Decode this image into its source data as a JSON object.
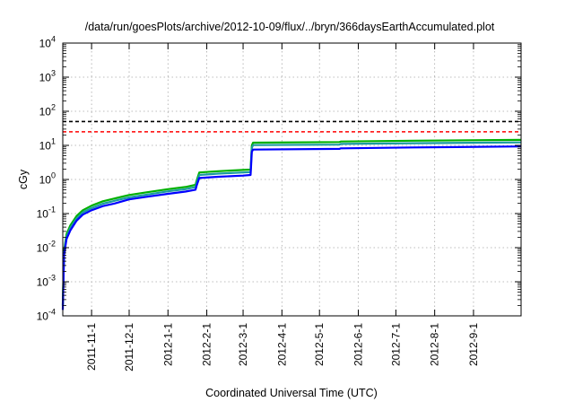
{
  "chart_data": {
    "type": "line",
    "title": "/data/run/goesPlots/archive/2012-10-09/flux/../bryn/366daysEarthAccumulated.plot",
    "xlabel": "Coordinated Universal Time (UTC)",
    "ylabel": "cGy",
    "yscale": "log",
    "xlim": [
      "2011-10-09",
      "2012-10-09"
    ],
    "ylim": [
      0.0001,
      10000
    ],
    "grid": true,
    "x_ticks": [
      {
        "date": "2011-11-01",
        "label": "2011-11-1"
      },
      {
        "date": "2011-12-01",
        "label": "2011-12-1"
      },
      {
        "date": "2012-01-01",
        "label": "2012-1-1"
      },
      {
        "date": "2012-02-01",
        "label": "2012-2-1"
      },
      {
        "date": "2012-03-01",
        "label": "2012-3-1"
      },
      {
        "date": "2012-04-01",
        "label": "2012-4-1"
      },
      {
        "date": "2012-05-01",
        "label": "2012-5-1"
      },
      {
        "date": "2012-06-01",
        "label": "2012-6-1"
      },
      {
        "date": "2012-07-01",
        "label": "2012-7-1"
      },
      {
        "date": "2012-08-01",
        "label": "2012-8-1"
      },
      {
        "date": "2012-09-01",
        "label": "2012-9-1"
      }
    ],
    "y_ticks": [
      {
        "value": 0.0001,
        "base": "10",
        "exp": "-4"
      },
      {
        "value": 0.001,
        "base": "10",
        "exp": "-3"
      },
      {
        "value": 0.01,
        "base": "10",
        "exp": "-2"
      },
      {
        "value": 0.1,
        "base": "10",
        "exp": "-1"
      },
      {
        "value": 1,
        "base": "10",
        "exp": "0"
      },
      {
        "value": 10,
        "base": "10",
        "exp": "1"
      },
      {
        "value": 100,
        "base": "10",
        "exp": "2"
      },
      {
        "value": 1000,
        "base": "10",
        "exp": "3"
      },
      {
        "value": 10000,
        "base": "10",
        "exp": "4"
      }
    ],
    "reference_lines": [
      {
        "y": 50,
        "color": "#000000",
        "style": "dashed"
      },
      {
        "y": 25,
        "color": "#ff0000",
        "style": "dashed"
      }
    ],
    "series": [
      {
        "color": "#00b000",
        "points": [
          [
            "2011-10-09",
            0.0002
          ],
          [
            "2011-10-10",
            0.008
          ],
          [
            "2011-10-12",
            0.025
          ],
          [
            "2011-10-15",
            0.045
          ],
          [
            "2011-10-20",
            0.085
          ],
          [
            "2011-10-25",
            0.125
          ],
          [
            "2011-11-01",
            0.17
          ],
          [
            "2011-11-10",
            0.23
          ],
          [
            "2011-11-20",
            0.28
          ],
          [
            "2011-12-01",
            0.35
          ],
          [
            "2011-12-15",
            0.42
          ],
          [
            "2012-01-01",
            0.52
          ],
          [
            "2012-01-15",
            0.6
          ],
          [
            "2012-01-23",
            0.7
          ],
          [
            "2012-01-24",
            0.95
          ],
          [
            "2012-01-26",
            1.6
          ],
          [
            "2012-02-10",
            1.75
          ],
          [
            "2012-03-01",
            1.9
          ],
          [
            "2012-03-07",
            1.95
          ],
          [
            "2012-03-08",
            10
          ],
          [
            "2012-03-09",
            12
          ],
          [
            "2012-05-17",
            12.5
          ],
          [
            "2012-05-18",
            13.0
          ],
          [
            "2012-07-15",
            13.7
          ],
          [
            "2012-10-09",
            14.5
          ]
        ]
      },
      {
        "color": "#1a9aa0",
        "points": [
          [
            "2011-10-09",
            0.0002
          ],
          [
            "2011-10-10",
            0.007
          ],
          [
            "2011-10-12",
            0.021
          ],
          [
            "2011-10-15",
            0.038
          ],
          [
            "2011-10-20",
            0.072
          ],
          [
            "2011-10-25",
            0.108
          ],
          [
            "2011-11-01",
            0.145
          ],
          [
            "2011-11-10",
            0.195
          ],
          [
            "2011-11-20",
            0.24
          ],
          [
            "2011-12-01",
            0.3
          ],
          [
            "2011-12-15",
            0.36
          ],
          [
            "2012-01-01",
            0.45
          ],
          [
            "2012-01-15",
            0.52
          ],
          [
            "2012-01-23",
            0.6
          ],
          [
            "2012-01-24",
            0.82
          ],
          [
            "2012-01-26",
            1.35
          ],
          [
            "2012-02-10",
            1.48
          ],
          [
            "2012-03-01",
            1.6
          ],
          [
            "2012-03-07",
            1.64
          ],
          [
            "2012-03-08",
            8.5
          ],
          [
            "2012-03-09",
            10.2
          ],
          [
            "2012-05-17",
            10.5
          ],
          [
            "2012-05-18",
            11.0
          ],
          [
            "2012-07-15",
            11.6
          ],
          [
            "2012-10-09",
            12.2
          ]
        ]
      },
      {
        "color": "#0000ff",
        "points": [
          [
            "2011-10-09",
            0.00015
          ],
          [
            "2011-10-10",
            0.006
          ],
          [
            "2011-10-12",
            0.018
          ],
          [
            "2011-10-15",
            0.032
          ],
          [
            "2011-10-20",
            0.062
          ],
          [
            "2011-10-25",
            0.093
          ],
          [
            "2011-11-01",
            0.125
          ],
          [
            "2011-11-10",
            0.165
          ],
          [
            "2011-11-20",
            0.2
          ],
          [
            "2011-12-01",
            0.26
          ],
          [
            "2011-12-15",
            0.31
          ],
          [
            "2012-01-01",
            0.38
          ],
          [
            "2012-01-15",
            0.44
          ],
          [
            "2012-01-23",
            0.5
          ],
          [
            "2012-01-24",
            0.68
          ],
          [
            "2012-01-26",
            1.1
          ],
          [
            "2012-02-10",
            1.2
          ],
          [
            "2012-03-01",
            1.3
          ],
          [
            "2012-03-07",
            1.35
          ],
          [
            "2012-03-08",
            6.5
          ],
          [
            "2012-03-09",
            7.5
          ],
          [
            "2012-05-17",
            7.9
          ],
          [
            "2012-05-18",
            8.2
          ],
          [
            "2012-07-15",
            8.7
          ],
          [
            "2012-10-09",
            9.3
          ]
        ]
      }
    ]
  }
}
